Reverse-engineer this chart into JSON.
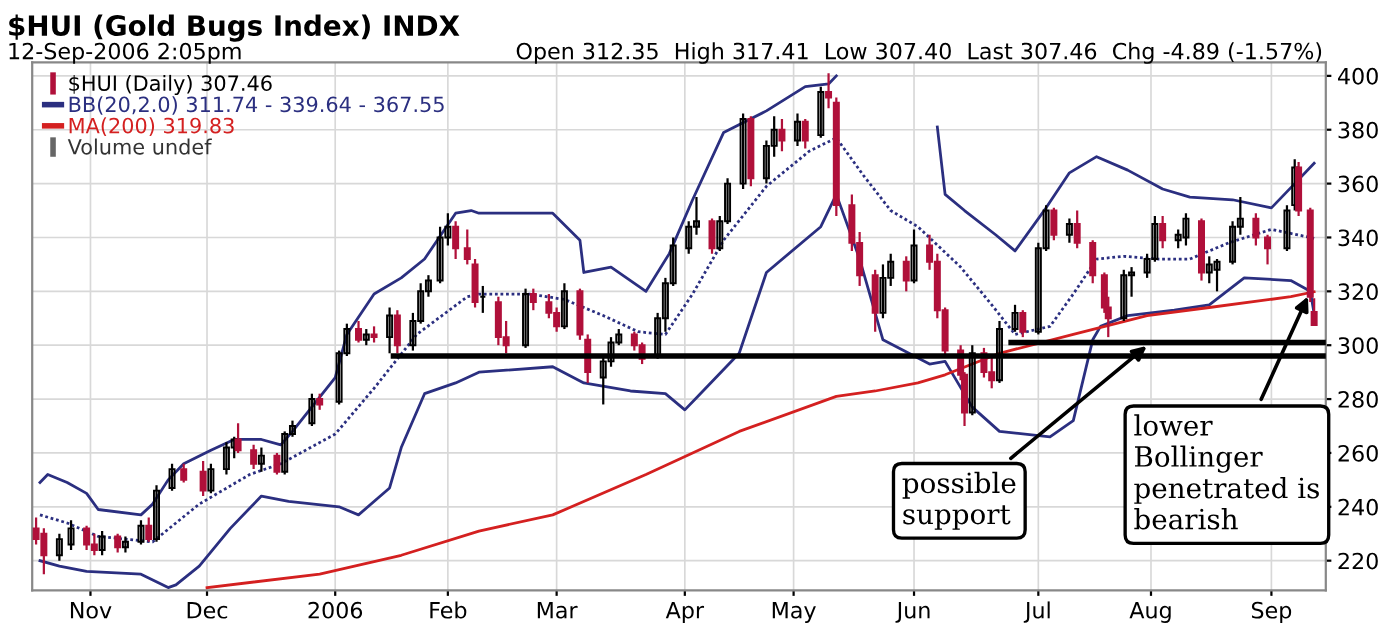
{
  "chart_data": {
    "type": "candlestick",
    "title": "$HUI (Gold Bugs Index) INDX",
    "subtitle": "12-Sep-2006 2:05pm",
    "annotations": [
      "Open 312.35  High 317.41  Low 307.40  Last 307.46  Chg -4.89 (-1.57%)",
      "Volume undef",
      {
        "text": "possible\nsupport",
        "x": "2006-08-01",
        "y": 301
      },
      {
        "text": "lower\nBollinger\npenetrated is\nbearish",
        "x": "2006-09-11",
        "y": 320
      }
    ],
    "xlim": [
      "2005-10-17",
      "2006-09-15"
    ],
    "xticks": [
      {
        "value": "2005-11-01",
        "label": "Nov"
      },
      {
        "value": "2005-12-01",
        "label": "Dec"
      },
      {
        "value": "2006-01-03",
        "label": "2006"
      },
      {
        "value": "2006-02-01",
        "label": "Feb"
      },
      {
        "value": "2006-03-01",
        "label": "Mar"
      },
      {
        "value": "2006-04-03",
        "label": "Apr"
      },
      {
        "value": "2006-05-01",
        "label": "May"
      },
      {
        "value": "2006-06-01",
        "label": "Jun"
      },
      {
        "value": "2006-07-03",
        "label": "Jul"
      },
      {
        "value": "2006-08-01",
        "label": "Aug"
      },
      {
        "value": "2006-09-01",
        "label": "Sep"
      }
    ],
    "ylim": [
      209,
      405
    ],
    "yticks": [
      220,
      240,
      260,
      280,
      300,
      320,
      340,
      360,
      380,
      400
    ],
    "grid": true,
    "legend": "top left",
    "series": [
      {
        "type": "candlestick",
        "name": "$HUI (Daily) 307.46",
        "color": "#b0103a",
        "colors": [
          "#b0103a",
          "#b0103a",
          "#000000",
          "#000000",
          "#b0103a",
          "#b0103a",
          "#000000",
          "#b0103a",
          "#000000",
          "#000000",
          "#b0103a",
          "#000000",
          "#000000",
          "#b0103a",
          "#b0103a",
          "#000000",
          "#000000",
          "#000000",
          "#b0103a",
          "#b0103a",
          "#000000",
          "#b0103a",
          "#000000",
          "#000000",
          "#000000",
          "#b0103a",
          "#000000",
          "#000000",
          "#b0103a",
          "#000000",
          "#b0103a",
          "#000000",
          "#b0103a",
          "#000000",
          "#000000",
          "#000000",
          "#000000",
          "#000000",
          "#b0103a",
          "#b0103a",
          "#b0103a",
          "#000000",
          "#b0103a",
          "#b0103a",
          "#000000",
          "#b0103a",
          "#b0103a",
          "#b0103a",
          "#000000",
          "#b0103a",
          "#b0103a",
          "#000000",
          "#000000",
          "#000000",
          "#b0103a",
          "#b0103a",
          "#000000",
          "#000000",
          "#000000",
          "#000000",
          "#000000",
          "#b0103a",
          "#000000",
          "#000000",
          "#000000",
          "#b0103a",
          "#000000",
          "#000000",
          "#b0103a",
          "#000000",
          "#b0103a",
          "#000000",
          "#b0103a",
          "#b0103a",
          "#b0103a",
          "#b0103a",
          "#b0103a",
          "#000000",
          "#000000",
          "#b0103a",
          "#000000",
          "#b0103a",
          "#b0103a",
          "#b0103a",
          "#b0103a",
          "#b0103a",
          "#000000",
          "#b0103a",
          "#b0103a",
          "#000000",
          "#000000",
          "#b0103a",
          "#000000",
          "#000000",
          "#b0103a",
          "#000000",
          "#b0103a",
          "#b0103a",
          "#b0103a",
          "#b0103a",
          "#000000",
          "#000000",
          "#000000",
          "#000000",
          "#b0103a",
          "#000000",
          "#000000",
          "#b0103a",
          "#000000",
          "#000000",
          "#000000",
          "#000000",
          "#b0103a",
          "#b0103a",
          "#000000",
          "#000000",
          "#b0103a",
          "#b0103a",
          "#b0103a"
        ],
        "x": [
          "2005-10-18",
          "2005-10-20",
          "2005-10-24",
          "2005-10-27",
          "2005-10-31",
          "2005-11-02",
          "2005-11-04",
          "2005-11-08",
          "2005-11-10",
          "2005-11-14",
          "2005-11-16",
          "2005-11-18",
          "2005-11-22",
          "2005-11-25",
          "2005-11-30",
          "2005-12-02",
          "2005-12-06",
          "2005-12-08",
          "2005-12-09",
          "2005-12-13",
          "2005-12-15",
          "2005-12-19",
          "2005-12-21",
          "2005-12-23",
          "2005-12-28",
          "2005-12-30",
          "2006-01-04",
          "2006-01-06",
          "2006-01-09",
          "2006-01-11",
          "2006-01-13",
          "2006-01-17",
          "2006-01-19",
          "2006-01-23",
          "2006-01-25",
          "2006-01-27",
          "2006-01-30",
          "2006-02-01",
          "2006-02-03",
          "2006-02-06",
          "2006-02-08",
          "2006-02-10",
          "2006-02-14",
          "2006-02-16",
          "2006-02-21",
          "2006-02-23",
          "2006-02-27",
          "2006-03-01",
          "2006-03-03",
          "2006-03-07",
          "2006-03-09",
          "2006-03-13",
          "2006-03-15",
          "2006-03-17",
          "2006-03-21",
          "2006-03-23",
          "2006-03-27",
          "2006-03-29",
          "2006-03-31",
          "2006-04-04",
          "2006-04-06",
          "2006-04-10",
          "2006-04-12",
          "2006-04-14",
          "2006-04-18",
          "2006-04-20",
          "2006-04-24",
          "2006-04-26",
          "2006-04-28",
          "2006-05-02",
          "2006-05-04",
          "2006-05-08",
          "2006-05-10",
          "2006-05-12",
          "2006-05-16",
          "2006-05-18",
          "2006-05-22",
          "2006-05-24",
          "2006-05-26",
          "2006-05-30",
          "2006-06-01",
          "2006-06-05",
          "2006-06-07",
          "2006-06-09",
          "2006-06-13",
          "2006-06-14",
          "2006-06-16",
          "2006-06-19",
          "2006-06-21",
          "2006-06-23",
          "2006-06-27",
          "2006-06-29",
          "2006-07-03",
          "2006-07-05",
          "2006-07-07",
          "2006-07-11",
          "2006-07-13",
          "2006-07-17",
          "2006-07-20",
          "2006-07-21",
          "2006-07-25",
          "2006-07-27",
          "2006-07-31",
          "2006-08-02",
          "2006-08-04",
          "2006-08-08",
          "2006-08-10",
          "2006-08-14",
          "2006-08-16",
          "2006-08-18",
          "2006-08-22",
          "2006-08-24",
          "2006-08-28",
          "2006-08-31",
          "2006-09-05",
          "2006-09-07",
          "2006-09-08",
          "2006-09-11",
          "2006-09-12"
        ],
        "ohlc": [
          [
            232,
            236,
            226,
            228
          ],
          [
            230,
            232,
            215,
            222
          ],
          [
            222,
            230,
            220,
            228
          ],
          [
            226,
            235,
            224,
            232
          ],
          [
            232,
            233,
            224,
            226
          ],
          [
            226,
            230,
            222,
            224
          ],
          [
            224,
            231,
            222,
            229
          ],
          [
            229,
            230,
            223,
            225
          ],
          [
            225,
            229,
            223,
            227
          ],
          [
            227,
            235,
            226,
            233
          ],
          [
            233,
            236,
            227,
            228
          ],
          [
            228,
            248,
            227,
            246
          ],
          [
            247,
            256,
            246,
            254
          ],
          [
            254,
            256,
            249,
            250
          ],
          [
            253,
            257,
            244,
            246
          ],
          [
            246,
            256,
            245,
            254
          ],
          [
            254,
            264,
            252,
            262
          ],
          [
            262,
            266,
            258,
            265
          ],
          [
            265,
            271,
            260,
            261
          ],
          [
            261,
            263,
            254,
            256
          ],
          [
            256,
            262,
            253,
            259
          ],
          [
            259,
            260,
            252,
            253
          ],
          [
            253,
            268,
            252,
            267
          ],
          [
            267,
            272,
            266,
            270
          ],
          [
            271,
            282,
            270,
            280
          ],
          [
            280,
            282,
            276,
            278
          ],
          [
            279,
            298,
            278,
            297
          ],
          [
            297,
            308,
            296,
            306
          ],
          [
            306,
            309,
            301,
            302
          ],
          [
            302,
            306,
            300,
            304
          ],
          [
            304,
            307,
            301,
            303
          ],
          [
            303,
            314,
            297,
            311
          ],
          [
            311,
            313,
            297,
            300
          ],
          [
            300,
            312,
            298,
            309
          ],
          [
            309,
            323,
            308,
            320
          ],
          [
            320,
            326,
            318,
            324
          ],
          [
            324,
            344,
            323,
            340
          ],
          [
            340,
            349,
            337,
            344
          ],
          [
            344,
            346,
            332,
            336
          ],
          [
            336,
            343,
            330,
            332
          ],
          [
            330,
            332,
            314,
            316
          ],
          [
            318,
            322,
            312,
            318
          ],
          [
            316,
            318,
            300,
            303
          ],
          [
            303,
            309,
            297,
            300
          ],
          [
            300,
            321,
            299,
            319
          ],
          [
            319,
            321,
            313,
            316
          ],
          [
            316,
            319,
            310,
            312
          ],
          [
            312,
            314,
            305,
            307
          ],
          [
            307,
            323,
            306,
            320
          ],
          [
            320,
            321,
            302,
            304
          ],
          [
            302,
            304,
            286,
            290
          ],
          [
            288,
            296,
            278,
            294
          ],
          [
            294,
            303,
            292,
            301
          ],
          [
            301,
            306,
            300,
            304
          ],
          [
            304,
            305,
            298,
            300
          ],
          [
            300,
            301,
            293,
            295
          ],
          [
            296,
            312,
            295,
            310
          ],
          [
            310,
            325,
            305,
            323
          ],
          [
            323,
            340,
            322,
            337
          ],
          [
            336,
            346,
            334,
            344
          ],
          [
            344,
            355,
            341,
            346
          ],
          [
            346,
            347,
            334,
            336
          ],
          [
            336,
            348,
            335,
            346
          ],
          [
            346,
            362,
            345,
            360
          ],
          [
            360,
            386,
            358,
            384
          ],
          [
            384,
            385,
            359,
            362
          ],
          [
            362,
            376,
            360,
            374
          ],
          [
            374,
            385,
            370,
            380
          ],
          [
            380,
            384,
            372,
            376
          ],
          [
            376,
            386,
            374,
            383
          ],
          [
            383,
            384,
            373,
            376
          ],
          [
            378,
            396,
            377,
            394
          ],
          [
            394,
            401,
            388,
            392
          ],
          [
            390,
            392,
            348,
            352
          ],
          [
            352,
            356,
            335,
            338
          ],
          [
            338,
            342,
            322,
            326
          ],
          [
            326,
            328,
            305,
            312
          ],
          [
            312,
            330,
            310,
            325
          ],
          [
            325,
            334,
            322,
            331
          ],
          [
            331,
            333,
            320,
            324
          ],
          [
            324,
            343,
            323,
            337
          ],
          [
            337,
            341,
            328,
            331
          ],
          [
            331,
            334,
            310,
            313
          ],
          [
            313,
            314,
            296,
            298
          ],
          [
            298,
            300,
            287,
            289
          ],
          [
            289,
            290,
            270,
            275
          ],
          [
            275,
            300,
            274,
            297
          ],
          [
            297,
            299,
            288,
            290
          ],
          [
            290,
            296,
            284,
            287
          ],
          [
            287,
            309,
            286,
            306
          ],
          [
            306,
            315,
            305,
            312
          ],
          [
            312,
            313,
            303,
            305
          ],
          [
            305,
            338,
            304,
            336
          ],
          [
            336,
            352,
            335,
            350
          ],
          [
            350,
            351,
            339,
            341
          ],
          [
            341,
            347,
            338,
            345
          ],
          [
            345,
            350,
            336,
            338
          ],
          [
            338,
            339,
            323,
            326
          ],
          [
            326,
            327,
            312,
            314
          ],
          [
            314,
            318,
            303,
            310
          ],
          [
            310,
            328,
            309,
            326
          ],
          [
            326,
            329,
            318,
            327
          ],
          [
            327,
            334,
            325,
            332
          ],
          [
            332,
            348,
            331,
            345
          ],
          [
            345,
            348,
            336,
            339
          ],
          [
            339,
            343,
            336,
            341
          ],
          [
            340,
            349,
            337,
            347
          ],
          [
            346,
            347,
            324,
            327
          ],
          [
            327,
            333,
            323,
            330
          ],
          [
            328,
            332,
            320,
            331
          ],
          [
            331,
            346,
            330,
            344
          ],
          [
            344,
            355,
            341,
            347
          ],
          [
            347,
            349,
            337,
            340
          ],
          [
            340,
            341,
            330,
            336
          ],
          [
            336,
            352,
            335,
            350
          ],
          [
            352,
            369,
            350,
            366
          ],
          [
            366,
            368,
            348,
            350
          ],
          [
            350,
            351,
            316,
            318
          ],
          [
            312.35,
            317.41,
            307.4,
            307.46
          ]
        ]
      },
      {
        "type": "line",
        "name": "BB(20,2.0) 311.74 - 339.64 - 367.55",
        "color": "#2b2f80",
        "line_style": "solid",
        "x": [
          "2005-10-19",
          "2005-10-21",
          "2005-10-26",
          "2005-10-31",
          "2005-11-03",
          "2005-11-14",
          "2005-11-17",
          "2005-11-21",
          "2005-11-25",
          "2005-12-02",
          "2005-12-08",
          "2005-12-15",
          "2005-12-20",
          "2005-12-23",
          "2006-01-03",
          "2006-01-06",
          "2006-01-13",
          "2006-01-20",
          "2006-01-26",
          "2006-02-03",
          "2006-02-07",
          "2006-02-09",
          "2006-02-28",
          "2006-03-07",
          "2006-03-08",
          "2006-03-15",
          "2006-03-24",
          "2006-03-30",
          "2006-04-05",
          "2006-04-13",
          "2006-04-24",
          "2006-05-04",
          "2006-05-10",
          "2006-05-12",
          "2006-05-22",
          "2006-05-26",
          "2006-06-07",
          "2006-06-09",
          "2006-06-14",
          "2006-06-22",
          "2006-06-27",
          "2006-07-05",
          "2006-07-11",
          "2006-07-18",
          "2006-07-26",
          "2006-08-04",
          "2006-08-11",
          "2006-08-22",
          "2006-09-01",
          "2006-09-07",
          "2006-09-12"
        ],
        "values": [
          249,
          252,
          249,
          245,
          239,
          237,
          241,
          250,
          256,
          261,
          265,
          265,
          263,
          268,
          288,
          304,
          319,
          325,
          332,
          349,
          350,
          349,
          349,
          339,
          327,
          329,
          320,
          334,
          354,
          379,
          387,
          396,
          397,
          400,
          null,
          null,
          381,
          356,
          350,
          341,
          335,
          351,
          364,
          370,
          365,
          358,
          355,
          354,
          351,
          360,
          367.55
        ]
      },
      {
        "type": "line",
        "color": "#2b2f80",
        "line_style": "dotted",
        "x": [
          "2005-10-19",
          "2005-10-26",
          "2005-11-03",
          "2005-11-17",
          "2005-11-29",
          "2005-12-12",
          "2005-12-20",
          "2006-01-03",
          "2006-01-13",
          "2006-01-24",
          "2006-02-06",
          "2006-02-09",
          "2006-02-22",
          "2006-03-03",
          "2006-03-13",
          "2006-03-22",
          "2006-03-29",
          "2006-04-05",
          "2006-04-13",
          "2006-04-24",
          "2006-05-05",
          "2006-05-12",
          "2006-05-19",
          "2006-05-26",
          "2006-06-02",
          "2006-06-13",
          "2006-06-21",
          "2006-06-27",
          "2006-07-06",
          "2006-07-12",
          "2006-07-18",
          "2006-07-25",
          "2006-08-03",
          "2006-08-11",
          "2006-08-21",
          "2006-09-01",
          "2006-09-11",
          "2006-09-12"
        ],
        "values": [
          237,
          234,
          229,
          227,
          241,
          252,
          256,
          267,
          284,
          304,
          318,
          319,
          319,
          317,
          311,
          305,
          304,
          319,
          339,
          359,
          372,
          377,
          363,
          350,
          344,
          329,
          315,
          304,
          307,
          319,
          332,
          333,
          332,
          332,
          338,
          343,
          340,
          339.64
        ]
      },
      {
        "type": "line",
        "color": "#2b2f80",
        "line_style": "solid",
        "x": [
          "2005-10-19",
          "2005-10-24",
          "2005-10-31",
          "2005-11-14",
          "2005-11-21",
          "2005-11-23",
          "2005-11-29",
          "2005-12-07",
          "2005-12-15",
          "2005-12-22",
          "2006-01-04",
          "2006-01-09",
          "2006-01-17",
          "2006-01-20",
          "2006-01-26",
          "2006-02-03",
          "2006-02-09",
          "2006-02-28",
          "2006-03-08",
          "2006-03-20",
          "2006-03-29",
          "2006-04-03",
          "2006-04-07",
          "2006-04-17",
          "2006-04-24",
          "2006-05-08",
          "2006-05-12",
          "2006-05-18",
          "2006-05-24",
          "2006-06-05",
          "2006-06-09",
          "2006-06-16",
          "2006-06-23",
          "2006-07-06",
          "2006-07-12",
          "2006-07-17",
          "2006-07-19",
          "2006-07-26",
          "2006-08-07",
          "2006-08-16",
          "2006-08-25",
          "2006-09-06",
          "2006-09-11",
          "2006-09-12"
        ],
        "values": [
          220,
          218,
          216,
          215,
          210,
          211,
          218,
          232,
          244,
          242,
          240,
          237,
          247,
          262,
          282,
          286,
          290,
          292,
          286,
          283,
          282,
          276,
          282,
          297,
          327,
          344,
          356,
          332,
          302,
          293,
          294,
          277,
          268,
          266,
          272,
          302,
          307,
          311,
          313,
          315,
          325,
          324,
          320,
          311.74
        ]
      },
      {
        "type": "line",
        "name": "MA(200) 319.83",
        "color": "#d42020",
        "line_style": "solid",
        "x": [
          "2005-12-01",
          "2005-12-30",
          "2006-01-20",
          "2006-02-09",
          "2006-02-28",
          "2006-03-24",
          "2006-04-17",
          "2006-05-12",
          "2006-05-22",
          "2006-06-02",
          "2006-06-09",
          "2006-06-23",
          "2006-07-12",
          "2006-07-31",
          "2006-08-16",
          "2006-09-06",
          "2006-09-12"
        ],
        "values": [
          210,
          215,
          222,
          231,
          237,
          252,
          268,
          281,
          283,
          286,
          289,
          297,
          304,
          311,
          314,
          318,
          319.83
        ]
      },
      {
        "type": "line",
        "color": "#000000",
        "line_style": "solid",
        "x": [
          "2006-01-18",
          "2006-09-15"
        ],
        "values": [
          296,
          296
        ]
      },
      {
        "type": "line",
        "color": "#000000",
        "line_style": "solid",
        "x": [
          "2006-06-26",
          "2006-09-15"
        ],
        "values": [
          301,
          301
        ]
      }
    ]
  }
}
